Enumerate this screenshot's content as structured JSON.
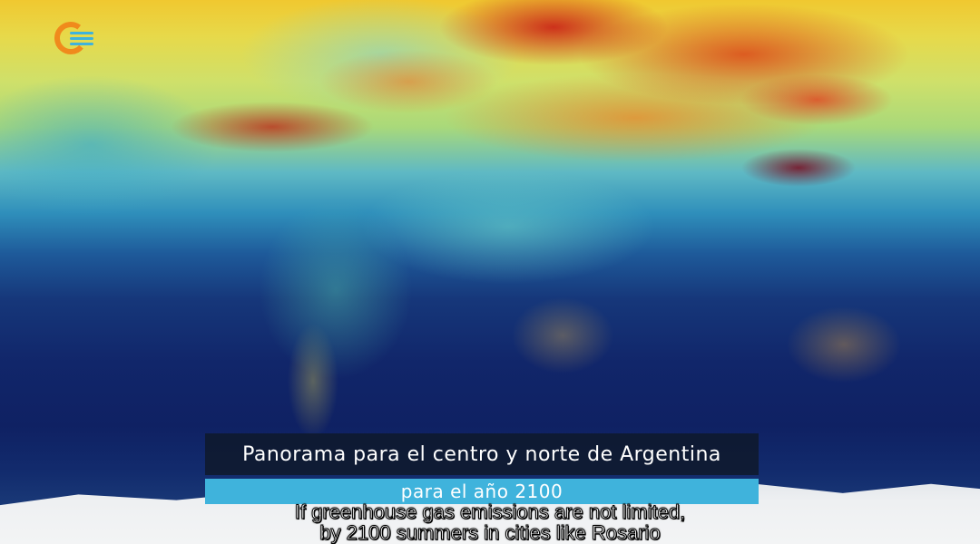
{
  "brand": {
    "logo_icon": "channel-logo-icon",
    "accent_orange": "#f08a1c",
    "accent_blue": "#3fb3dc"
  },
  "lower_third": {
    "title": "Panorama para el centro y norte de Argentina",
    "subtitle": "para el año 2100",
    "title_bg": "#0f1928",
    "subtitle_bg": "#3fb3dc"
  },
  "closed_captions": {
    "line1": "If greenhouse gas emissions are not limited,",
    "line2": "by 2100 summers in cities like Rosario"
  }
}
